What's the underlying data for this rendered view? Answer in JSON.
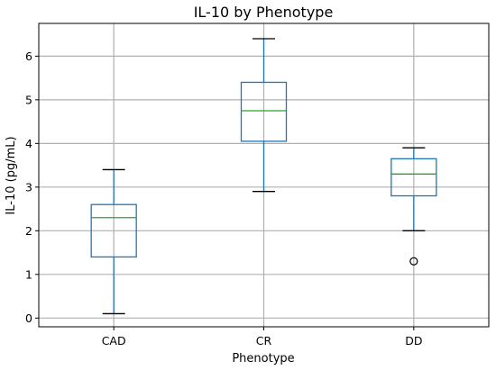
{
  "chart_data": {
    "type": "boxplot",
    "title": "IL-10 by Phenotype",
    "xlabel": "Phenotype",
    "ylabel": "IL-10 (pg/mL)",
    "ylim": [
      -0.2,
      6.75
    ],
    "yticks": [
      "0",
      "1",
      "2",
      "3",
      "4",
      "5",
      "6"
    ],
    "categories": [
      "CAD",
      "CR",
      "DD"
    ],
    "grid": true,
    "boxes": [
      {
        "category": "CAD",
        "whisker_low": 0.1,
        "q1": 1.4,
        "median": 2.3,
        "q3": 2.6,
        "whisker_high": 3.4,
        "outliers": []
      },
      {
        "category": "CR",
        "whisker_low": 2.9,
        "q1": 4.05,
        "median": 4.75,
        "q3": 5.4,
        "whisker_high": 6.4,
        "outliers": []
      },
      {
        "category": "DD",
        "whisker_low": 2.0,
        "q1": 2.8,
        "median": 3.3,
        "q3": 3.65,
        "whisker_high": 3.9,
        "outliers": [
          1.3
        ]
      }
    ],
    "colors": {
      "box": "#1f77b4",
      "median": "#2ca02c",
      "whisker": "#1f77b4",
      "cap": "#000000",
      "outlier": "#000000"
    }
  }
}
